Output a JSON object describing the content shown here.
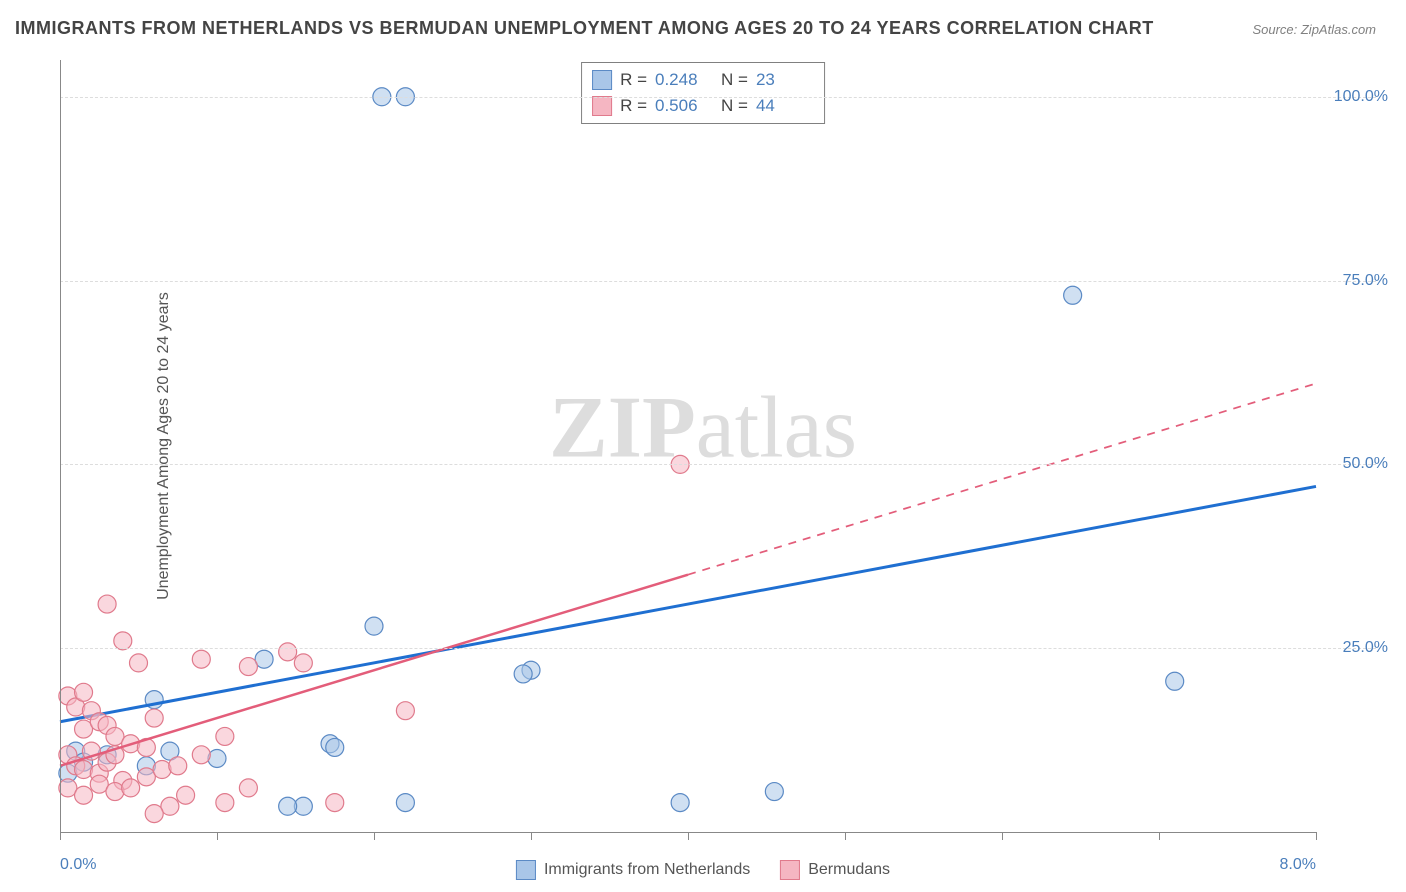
{
  "title": "IMMIGRANTS FROM NETHERLANDS VS BERMUDAN UNEMPLOYMENT AMONG AGES 20 TO 24 YEARS CORRELATION CHART",
  "source": "Source: ZipAtlas.com",
  "ylabel": "Unemployment Among Ages 20 to 24 years",
  "watermark_zip": "ZIP",
  "watermark_atlas": "atlas",
  "chart": {
    "type": "scatter",
    "background_color": "#ffffff",
    "grid_color": "#dddddd",
    "axis_color": "#888888",
    "tick_label_color": "#4a7ebb",
    "label_fontsize": 16,
    "title_fontsize": 18,
    "title_color": "#444444",
    "xlim": [
      0.0,
      8.0
    ],
    "ylim": [
      0.0,
      105.0
    ],
    "xticks": [
      0.0,
      8.0
    ],
    "xtick_labels": [
      "0.0%",
      "8.0%"
    ],
    "xtick_marks": [
      0.0,
      1.0,
      2.0,
      3.0,
      4.0,
      5.0,
      6.0,
      7.0,
      8.0
    ],
    "yticks": [
      25.0,
      50.0,
      75.0,
      100.0
    ],
    "ytick_labels": [
      "25.0%",
      "50.0%",
      "75.0%",
      "100.0%"
    ],
    "marker_radius": 9,
    "marker_stroke_width": 1.2,
    "series": [
      {
        "name": "Immigrants from Netherlands",
        "color_fill": "#a9c6e8",
        "color_fill_opacity": 0.55,
        "color_stroke": "#5b8ac5",
        "trend_color": "#1f6fd1",
        "trend_width": 3,
        "trend_solid_xmax": 8.0,
        "trend_y0": 15.0,
        "trend_y1": 47.0,
        "R": "0.248",
        "N": "23",
        "points": [
          [
            2.05,
            100.0
          ],
          [
            2.2,
            100.0
          ],
          [
            6.45,
            73.0
          ],
          [
            7.1,
            20.5
          ],
          [
            4.55,
            5.5
          ],
          [
            3.95,
            4.0
          ],
          [
            3.0,
            22.0
          ],
          [
            2.95,
            21.5
          ],
          [
            2.2,
            4.0
          ],
          [
            1.55,
            3.5
          ],
          [
            1.45,
            3.5
          ],
          [
            1.72,
            12.0
          ],
          [
            1.75,
            11.5
          ],
          [
            1.3,
            23.5
          ],
          [
            1.0,
            10.0
          ],
          [
            0.7,
            11.0
          ],
          [
            0.55,
            9.0
          ],
          [
            0.3,
            10.5
          ],
          [
            0.1,
            11.0
          ],
          [
            0.15,
            9.5
          ],
          [
            0.05,
            8.0
          ],
          [
            0.6,
            18.0
          ],
          [
            2.0,
            28.0
          ]
        ]
      },
      {
        "name": "Bermudans",
        "color_fill": "#f5b6c2",
        "color_fill_opacity": 0.55,
        "color_stroke": "#e07a8c",
        "trend_color": "#e35d7a",
        "trend_width": 2.5,
        "trend_solid_xmax": 4.0,
        "trend_y0": 9.0,
        "trend_y1": 61.0,
        "R": "0.506",
        "N": "44",
        "points": [
          [
            3.95,
            50.0
          ],
          [
            0.05,
            18.5
          ],
          [
            0.1,
            17.0
          ],
          [
            0.15,
            19.0
          ],
          [
            0.2,
            16.5
          ],
          [
            0.15,
            14.0
          ],
          [
            0.25,
            15.0
          ],
          [
            0.3,
            14.5
          ],
          [
            0.35,
            13.0
          ],
          [
            0.05,
            10.5
          ],
          [
            0.1,
            9.0
          ],
          [
            0.15,
            8.5
          ],
          [
            0.2,
            11.0
          ],
          [
            0.25,
            8.0
          ],
          [
            0.3,
            9.5
          ],
          [
            0.35,
            10.5
          ],
          [
            0.4,
            7.0
          ],
          [
            0.45,
            12.0
          ],
          [
            0.55,
            11.5
          ],
          [
            0.05,
            6.0
          ],
          [
            0.15,
            5.0
          ],
          [
            0.25,
            6.5
          ],
          [
            0.35,
            5.5
          ],
          [
            0.45,
            6.0
          ],
          [
            0.55,
            7.5
          ],
          [
            0.65,
            8.5
          ],
          [
            0.75,
            9.0
          ],
          [
            0.5,
            23.0
          ],
          [
            0.4,
            26.0
          ],
          [
            0.3,
            31.0
          ],
          [
            0.9,
            23.5
          ],
          [
            1.2,
            22.5
          ],
          [
            1.55,
            23.0
          ],
          [
            1.05,
            13.0
          ],
          [
            0.8,
            5.0
          ],
          [
            0.7,
            3.5
          ],
          [
            0.6,
            2.5
          ],
          [
            1.05,
            4.0
          ],
          [
            1.2,
            6.0
          ],
          [
            1.75,
            4.0
          ],
          [
            2.2,
            16.5
          ],
          [
            1.45,
            24.5
          ],
          [
            0.6,
            15.5
          ],
          [
            0.9,
            10.5
          ]
        ]
      }
    ]
  },
  "legend_top": {
    "border_color": "#808080",
    "label_R": "R =",
    "label_N": "N ="
  },
  "legend_bottom": {
    "items": [
      "Immigrants from Netherlands",
      "Bermudans"
    ]
  }
}
